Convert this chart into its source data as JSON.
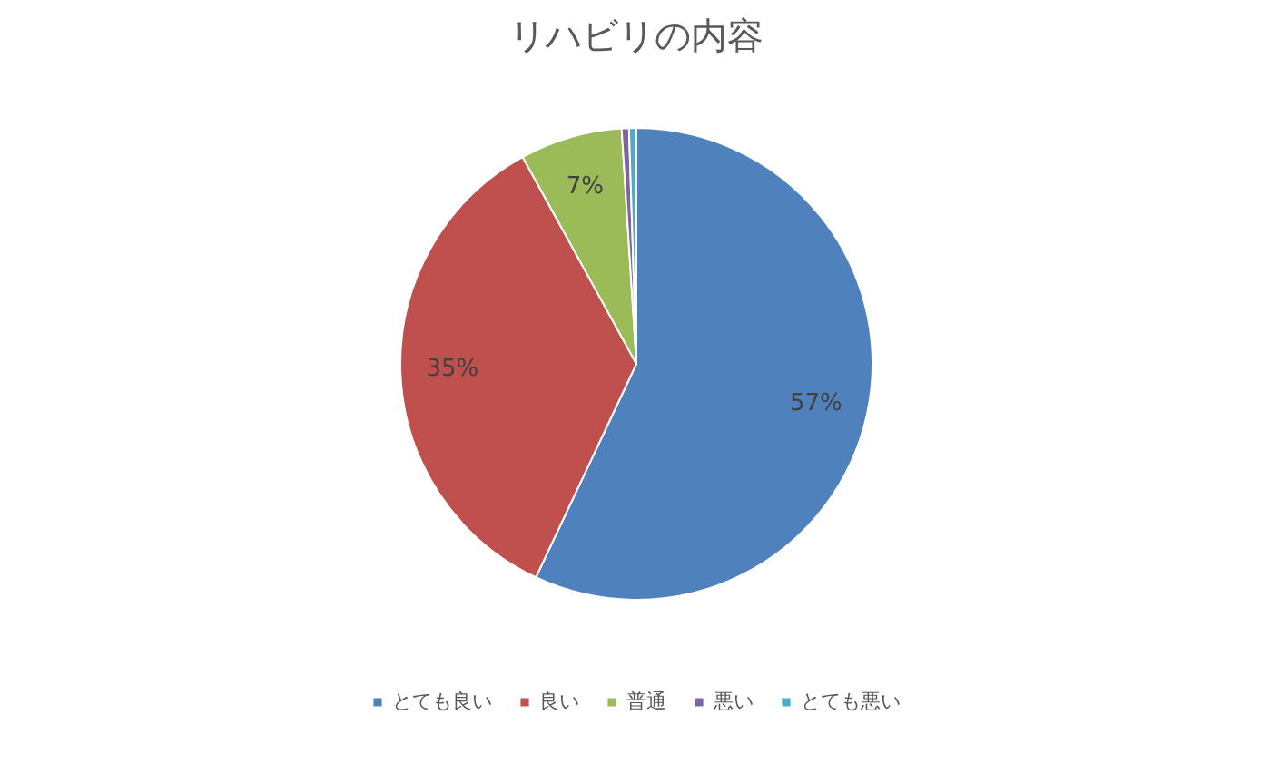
{
  "chart_data": {
    "type": "pie",
    "title": "リハビリの内容",
    "categories": [
      "とても良い",
      "良い",
      "普通",
      "悪い",
      "とても悪い"
    ],
    "values": [
      57,
      35,
      7,
      0.5,
      0.5
    ],
    "colors": [
      "#4f81bd",
      "#c0504d",
      "#9bbb59",
      "#8064a2",
      "#4bacc6"
    ],
    "value_labels": [
      "57%",
      "35%",
      "7%",
      null,
      null
    ],
    "legend": "bottom"
  }
}
